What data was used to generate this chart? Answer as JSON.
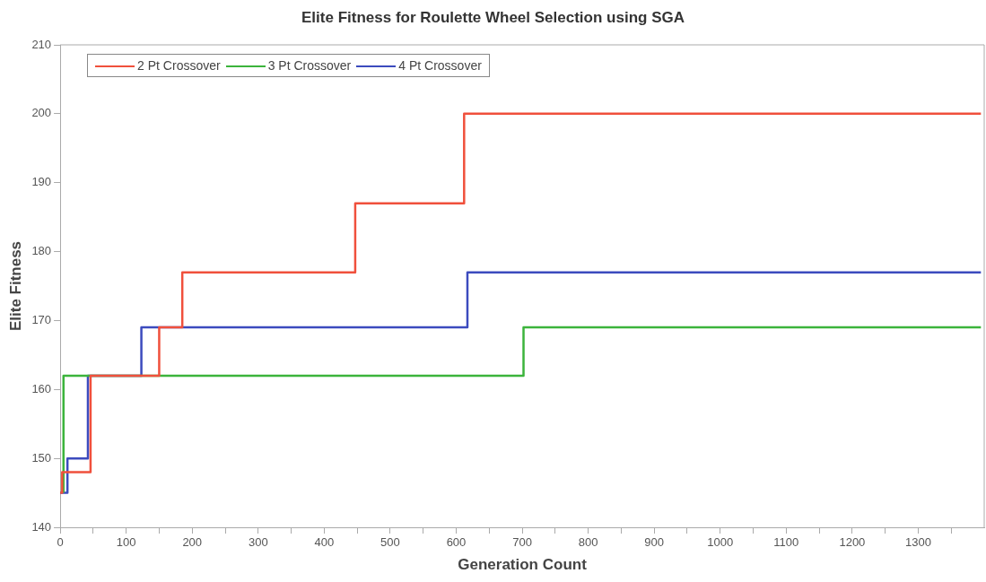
{
  "chart_data": {
    "type": "step",
    "title": "Elite Fitness for Roulette Wheel Selection using SGA",
    "xlabel": "Generation Count",
    "ylabel": "Elite Fitness",
    "series": [
      {
        "name": "2 Pt Crossover",
        "color": "#f0503c",
        "x": [
          0,
          3,
          46,
          150,
          185,
          447,
          612,
          1395
        ],
        "values": [
          145,
          148,
          162,
          169,
          177,
          187,
          200,
          200
        ]
      },
      {
        "name": "3 Pt Crossover",
        "color": "#3cb43c",
        "x": [
          5,
          5,
          702,
          1395
        ],
        "values": [
          145,
          162,
          169,
          169
        ]
      },
      {
        "name": "4 Pt Crossover",
        "color": "#3c4bbe",
        "x": [
          0,
          11,
          42,
          123,
          617,
          1395
        ],
        "values": [
          145,
          150,
          162,
          169,
          177,
          177
        ]
      }
    ],
    "xlim": [
      0,
      1400
    ],
    "xticks": [
      0,
      {
        "value": 50,
        "label": null
      },
      100,
      {
        "value": 150,
        "label": null
      },
      200,
      {
        "value": 250,
        "label": null
      },
      300,
      {
        "value": 350,
        "label": null
      },
      400,
      {
        "value": 450,
        "label": null
      },
      500,
      {
        "value": 550,
        "label": null
      },
      600,
      {
        "value": 650,
        "label": null
      },
      700,
      {
        "value": 750,
        "label": null
      },
      800,
      {
        "value": 850,
        "label": null
      },
      900,
      {
        "value": 950,
        "label": null
      },
      1000,
      {
        "value": 1050,
        "label": null
      },
      1100,
      {
        "value": 1150,
        "label": null
      },
      1200,
      {
        "value": 1250,
        "label": null
      },
      1300,
      {
        "value": 1350,
        "label": null
      }
    ],
    "ylim": [
      140,
      210
    ],
    "yticks": [
      140,
      150,
      160,
      170,
      180,
      190,
      200,
      210
    ],
    "grid": false,
    "legend": "top left",
    "marker": "none",
    "line_style": "solid"
  }
}
